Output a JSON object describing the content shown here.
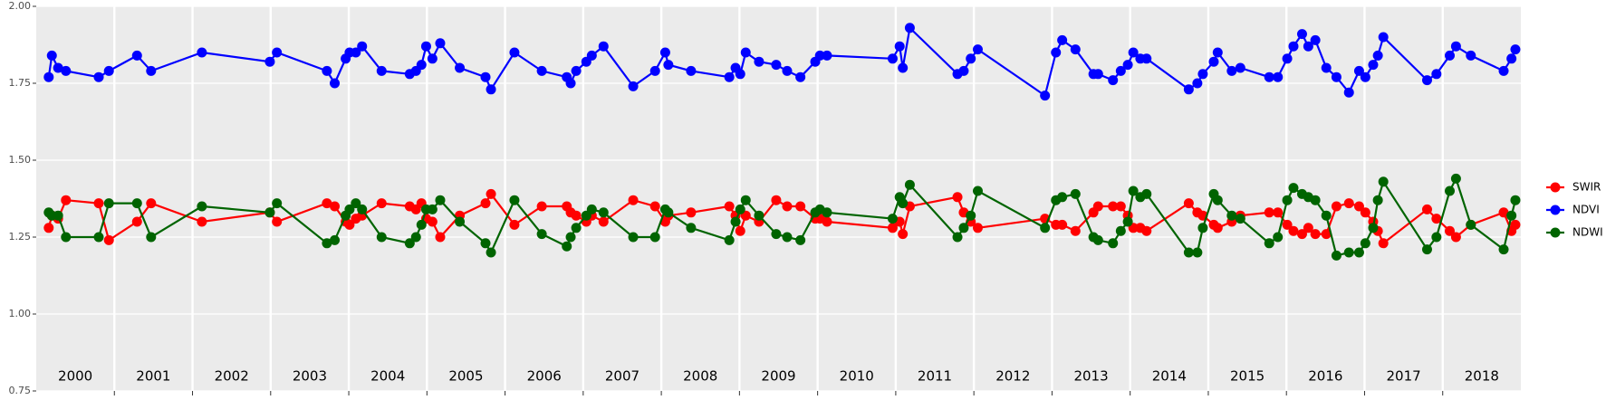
{
  "chart_data": {
    "type": "line",
    "x": [
      2000.16,
      2000.2,
      2000.28,
      2000.38,
      2000.8,
      2000.93,
      2001.29,
      2001.47,
      2002.12,
      2002.99,
      2003.08,
      2003.72,
      2003.82,
      2003.96,
      2004.01,
      2004.09,
      2004.17,
      2004.42,
      2004.78,
      2004.86,
      2004.93,
      2004.99,
      2005.07,
      2005.17,
      2005.42,
      2005.75,
      2005.82,
      2006.12,
      2006.47,
      2006.79,
      2006.84,
      2006.91,
      2007.04,
      2007.11,
      2007.26,
      2007.64,
      2007.92,
      2008.05,
      2008.09,
      2008.38,
      2008.87,
      2008.95,
      2009.01,
      2009.08,
      2009.25,
      2009.47,
      2009.61,
      2009.78,
      2009.97,
      2010.03,
      2010.12,
      2010.96,
      2011.05,
      2011.09,
      2011.18,
      2011.79,
      2011.87,
      2011.96,
      2012.05,
      2012.91,
      2013.05,
      2013.13,
      2013.3,
      2013.53,
      2013.59,
      2013.78,
      2013.88,
      2013.97,
      2014.04,
      2014.13,
      2014.21,
      2014.75,
      2014.86,
      2014.93,
      2015.07,
      2015.12,
      2015.3,
      2015.41,
      2015.78,
      2015.89,
      2016.01,
      2016.09,
      2016.2,
      2016.28,
      2016.37,
      2016.51,
      2016.64,
      2016.8,
      2016.93,
      2017.01,
      2017.11,
      2017.17,
      2017.24,
      2017.8,
      2017.92,
      2018.09,
      2018.17,
      2018.36,
      2018.78,
      2018.88,
      2018.93
    ],
    "series": [
      {
        "name": "SWIR",
        "color": "#ff0000",
        "values": [
          1.28,
          1.32,
          1.31,
          1.37,
          1.36,
          1.24,
          1.3,
          1.36,
          1.3,
          1.33,
          1.3,
          1.36,
          1.35,
          1.3,
          1.29,
          1.31,
          1.32,
          1.36,
          1.35,
          1.34,
          1.36,
          1.31,
          1.3,
          1.25,
          1.32,
          1.36,
          1.39,
          1.29,
          1.35,
          1.35,
          1.33,
          1.32,
          1.3,
          1.32,
          1.3,
          1.37,
          1.35,
          1.3,
          1.32,
          1.33,
          1.35,
          1.32,
          1.27,
          1.32,
          1.3,
          1.37,
          1.35,
          1.35,
          1.31,
          1.31,
          1.3,
          1.28,
          1.3,
          1.26,
          1.35,
          1.38,
          1.33,
          1.3,
          1.28,
          1.31,
          1.29,
          1.29,
          1.27,
          1.33,
          1.35,
          1.35,
          1.35,
          1.32,
          1.28,
          1.28,
          1.27,
          1.36,
          1.33,
          1.32,
          1.29,
          1.28,
          1.3,
          1.32,
          1.33,
          1.33,
          1.29,
          1.27,
          1.26,
          1.28,
          1.26,
          1.26,
          1.35,
          1.36,
          1.35,
          1.33,
          1.3,
          1.27,
          1.23,
          1.34,
          1.31,
          1.27,
          1.25,
          1.29,
          1.33,
          1.27,
          1.29
        ]
      },
      {
        "name": "NDVI",
        "color": "#0000ff",
        "values": [
          1.77,
          1.84,
          1.8,
          1.79,
          1.77,
          1.79,
          1.84,
          1.79,
          1.85,
          1.82,
          1.85,
          1.79,
          1.75,
          1.83,
          1.85,
          1.85,
          1.87,
          1.79,
          1.78,
          1.79,
          1.81,
          1.87,
          1.83,
          1.88,
          1.8,
          1.77,
          1.73,
          1.85,
          1.79,
          1.77,
          1.75,
          1.79,
          1.82,
          1.84,
          1.87,
          1.74,
          1.79,
          1.85,
          1.81,
          1.79,
          1.77,
          1.8,
          1.78,
          1.85,
          1.82,
          1.81,
          1.79,
          1.77,
          1.82,
          1.84,
          1.84,
          1.83,
          1.87,
          1.8,
          1.93,
          1.78,
          1.79,
          1.83,
          1.86,
          1.71,
          1.85,
          1.89,
          1.86,
          1.78,
          1.78,
          1.76,
          1.79,
          1.81,
          1.85,
          1.83,
          1.83,
          1.73,
          1.75,
          1.78,
          1.82,
          1.85,
          1.79,
          1.8,
          1.77,
          1.77,
          1.83,
          1.87,
          1.91,
          1.87,
          1.89,
          1.8,
          1.77,
          1.72,
          1.79,
          1.77,
          1.81,
          1.84,
          1.9,
          1.76,
          1.78,
          1.84,
          1.87,
          1.84,
          1.79,
          1.83,
          1.86
        ]
      },
      {
        "name": "NDWI",
        "color": "#006400",
        "values": [
          1.33,
          1.32,
          1.32,
          1.25,
          1.25,
          1.36,
          1.36,
          1.25,
          1.35,
          1.33,
          1.36,
          1.23,
          1.24,
          1.32,
          1.34,
          1.36,
          1.34,
          1.25,
          1.23,
          1.25,
          1.29,
          1.34,
          1.34,
          1.37,
          1.3,
          1.23,
          1.2,
          1.37,
          1.26,
          1.22,
          1.25,
          1.28,
          1.32,
          1.34,
          1.33,
          1.25,
          1.25,
          1.34,
          1.33,
          1.28,
          1.24,
          1.3,
          1.34,
          1.37,
          1.32,
          1.26,
          1.25,
          1.24,
          1.33,
          1.34,
          1.33,
          1.31,
          1.38,
          1.36,
          1.42,
          1.25,
          1.28,
          1.32,
          1.4,
          1.28,
          1.37,
          1.38,
          1.39,
          1.25,
          1.24,
          1.23,
          1.27,
          1.3,
          1.4,
          1.38,
          1.39,
          1.2,
          1.2,
          1.28,
          1.39,
          1.37,
          1.32,
          1.31,
          1.23,
          1.25,
          1.37,
          1.41,
          1.39,
          1.38,
          1.37,
          1.32,
          1.19,
          1.2,
          1.2,
          1.23,
          1.28,
          1.37,
          1.43,
          1.21,
          1.25,
          1.4,
          1.44,
          1.29,
          1.21,
          1.32,
          1.37
        ]
      }
    ],
    "xlim": [
      2000,
      2019
    ],
    "xticks": [
      2001,
      2002,
      2003,
      2004,
      2005,
      2006,
      2007,
      2008,
      2009,
      2010,
      2011,
      2012,
      2013,
      2014,
      2015,
      2016,
      2017,
      2018
    ],
    "year_labels": [
      {
        "value": 2000.5,
        "label": "2000"
      },
      {
        "value": 2001.5,
        "label": "2001"
      },
      {
        "value": 2002.5,
        "label": "2002"
      },
      {
        "value": 2003.5,
        "label": "2003"
      },
      {
        "value": 2004.5,
        "label": "2004"
      },
      {
        "value": 2005.5,
        "label": "2005"
      },
      {
        "value": 2006.5,
        "label": "2006"
      },
      {
        "value": 2007.5,
        "label": "2007"
      },
      {
        "value": 2008.5,
        "label": "2008"
      },
      {
        "value": 2009.5,
        "label": "2009"
      },
      {
        "value": 2010.5,
        "label": "2010"
      },
      {
        "value": 2011.5,
        "label": "2011"
      },
      {
        "value": 2012.5,
        "label": "2012"
      },
      {
        "value": 2013.5,
        "label": "2013"
      },
      {
        "value": 2014.5,
        "label": "2014"
      },
      {
        "value": 2015.5,
        "label": "2015"
      },
      {
        "value": 2016.5,
        "label": "2016"
      },
      {
        "value": 2017.5,
        "label": "2017"
      },
      {
        "value": 2018.5,
        "label": "2018"
      }
    ],
    "ylim": [
      0.75,
      2.0
    ],
    "yticks": [
      {
        "value": 0.75,
        "label": "0.75"
      },
      {
        "value": 1.0,
        "label": "1.00"
      },
      {
        "value": 1.25,
        "label": "1.25"
      },
      {
        "value": 1.5,
        "label": "1.50"
      },
      {
        "value": 1.75,
        "label": "1.75"
      },
      {
        "value": 2.0,
        "label": "2.00"
      }
    ],
    "grid": true,
    "legend": "right"
  }
}
